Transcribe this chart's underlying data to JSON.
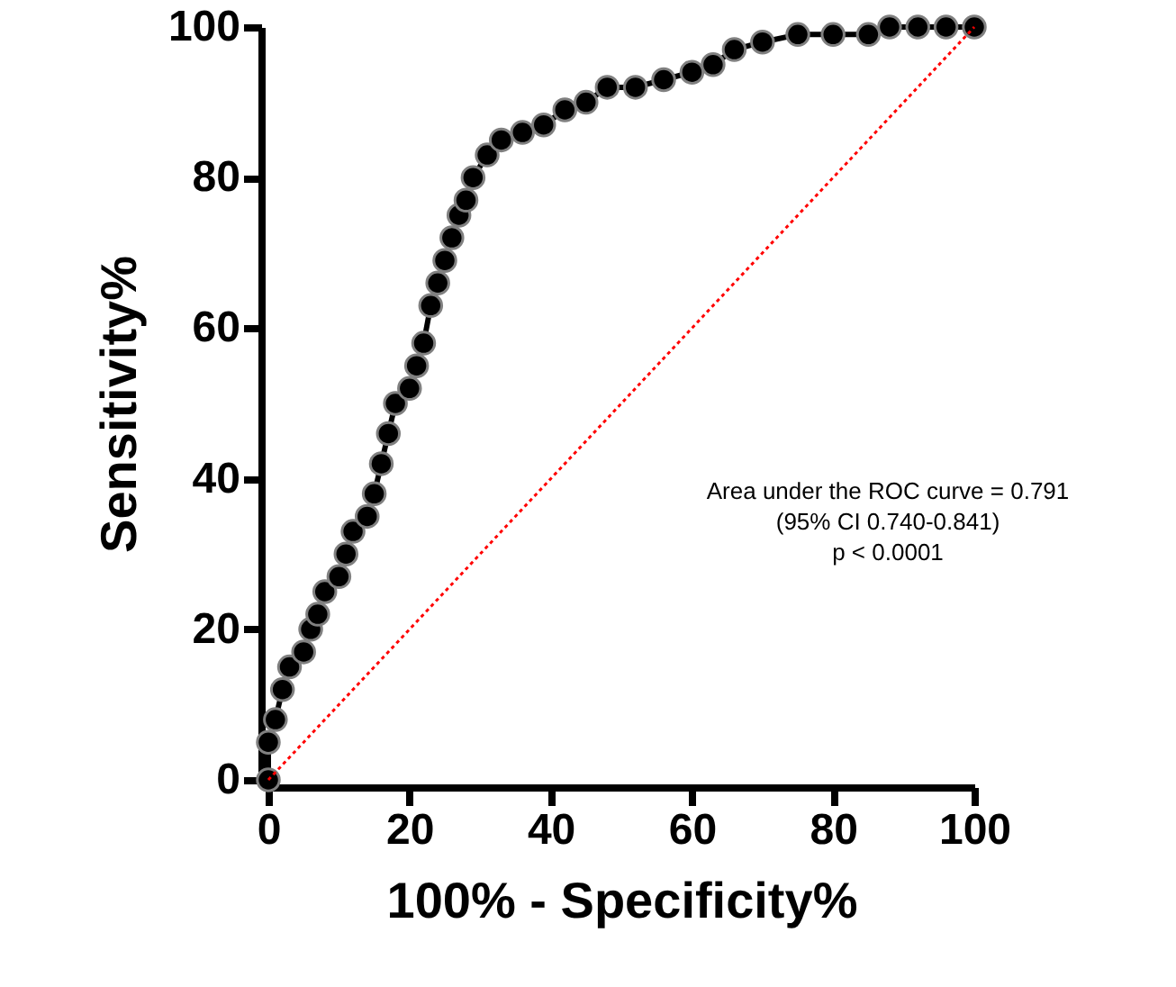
{
  "chart_data": {
    "type": "line",
    "xlabel": "100% - Specificity%",
    "ylabel": "Sensitivity%",
    "xlim": [
      0,
      100
    ],
    "ylim": [
      0,
      100
    ],
    "xticks": [
      0,
      20,
      40,
      60,
      80,
      100
    ],
    "yticks": [
      0,
      20,
      40,
      60,
      80,
      100
    ],
    "grid": false,
    "series": [
      {
        "type": "line",
        "marker": "circle",
        "line_style": "solid",
        "color": "#000000",
        "x": [
          0,
          0,
          1,
          2,
          3,
          5,
          6,
          7,
          8,
          10,
          11,
          12,
          14,
          15,
          16,
          17,
          18,
          20,
          21,
          22,
          23,
          24,
          25,
          26,
          27,
          28,
          29,
          31,
          33,
          36,
          39,
          42,
          45,
          48,
          52,
          56,
          60,
          63,
          66,
          70,
          75,
          80,
          85,
          88,
          92,
          96,
          100
        ],
        "values": [
          0,
          5,
          8,
          12,
          15,
          17,
          20,
          22,
          25,
          27,
          30,
          33,
          35,
          38,
          42,
          46,
          50,
          52,
          55,
          58,
          63,
          66,
          69,
          72,
          75,
          77,
          80,
          83,
          85,
          86,
          87,
          89,
          90,
          92,
          92,
          93,
          94,
          95,
          97,
          98,
          99,
          99,
          99,
          100,
          100,
          100,
          100
        ]
      },
      {
        "type": "line",
        "marker": "none",
        "line_style": "dotted",
        "color": "#ff0000",
        "x": [
          0,
          100
        ],
        "values": [
          0,
          100
        ]
      }
    ],
    "annotations": [
      "Area under the ROC curve = 0.791",
      "(95% CI 0.740-0.841)",
      "p < 0.0001"
    ]
  }
}
